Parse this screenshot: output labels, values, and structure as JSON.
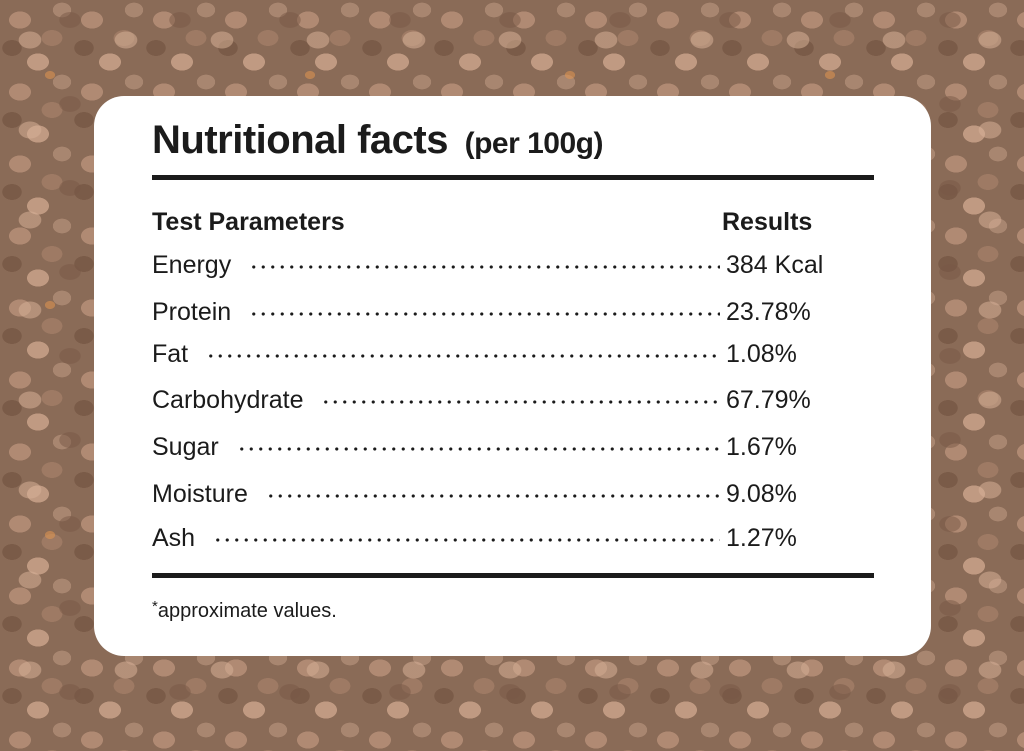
{
  "title": "Nutritional facts",
  "title_suffix": "(per 100g)",
  "headers": {
    "parameter": "Test Parameters",
    "result": "Results"
  },
  "rows": [
    {
      "parameter": "Energy",
      "value": "384 Kcal"
    },
    {
      "parameter": "Protein",
      "value": "23.78%"
    },
    {
      "parameter": "Fat",
      "value": "1.08%"
    },
    {
      "parameter": "Carbohydrate",
      "value": "67.79%"
    },
    {
      "parameter": "Sugar",
      "value": "1.67%"
    },
    {
      "parameter": "Moisture",
      "value": "9.08%"
    },
    {
      "parameter": "Ash",
      "value": "1.27%"
    }
  ],
  "footnote": {
    "marker": "*",
    "text": "approximate values."
  },
  "colors": {
    "text": "#1b1b1b",
    "card": "#ffffff",
    "background": "#8a6b57"
  }
}
